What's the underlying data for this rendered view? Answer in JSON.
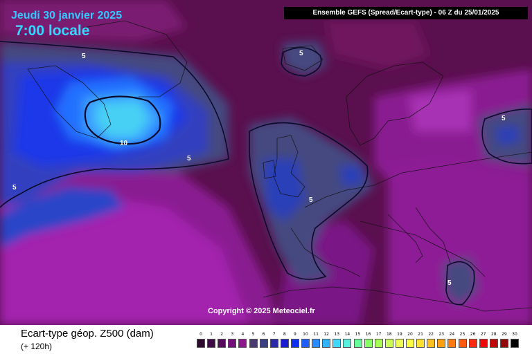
{
  "header": {
    "date": "Jeudi 30 janvier 2025",
    "time": "7:00 locale",
    "ensemble": "Ensemble GEFS  (Spread/Ecart-type) - 06 Z du 25/01/2025"
  },
  "copyright": "Copyright © 2025 Meteociel.fr",
  "footer": {
    "title": "Ecart-type géop. Z500 (dam)",
    "lead_time": "(+ 120h)"
  },
  "contour_labels": [
    "5",
    "5",
    "10",
    "5",
    "5",
    "5",
    "5",
    "5"
  ],
  "legend": {
    "values": [
      "0",
      "1",
      "2",
      "3",
      "4",
      "5",
      "6",
      "7",
      "8",
      "9",
      "10",
      "11",
      "12",
      "13",
      "14",
      "15",
      "16",
      "17",
      "18",
      "19",
      "20",
      "21",
      "22",
      "23",
      "24",
      "25",
      "26",
      "27",
      "28",
      "29",
      "30"
    ],
    "colors": [
      "#2b0a2b",
      "#3d0a44",
      "#560a5c",
      "#74107a",
      "#8a1a8a",
      "#4a3a72",
      "#3a4080",
      "#2a2aa8",
      "#1a1ad0",
      "#1030f0",
      "#1e5cff",
      "#2a8cff",
      "#33b4ff",
      "#40d8ff",
      "#5af0e0",
      "#66ff99",
      "#88ff66",
      "#aaff55",
      "#ccff55",
      "#eeff55",
      "#ffff44",
      "#ffe030",
      "#ffc020",
      "#ffa010",
      "#ff7a10",
      "#ff5a10",
      "#ff2a10",
      "#ee0a0a",
      "#c00a0a",
      "#900a0a",
      "#000000"
    ]
  }
}
